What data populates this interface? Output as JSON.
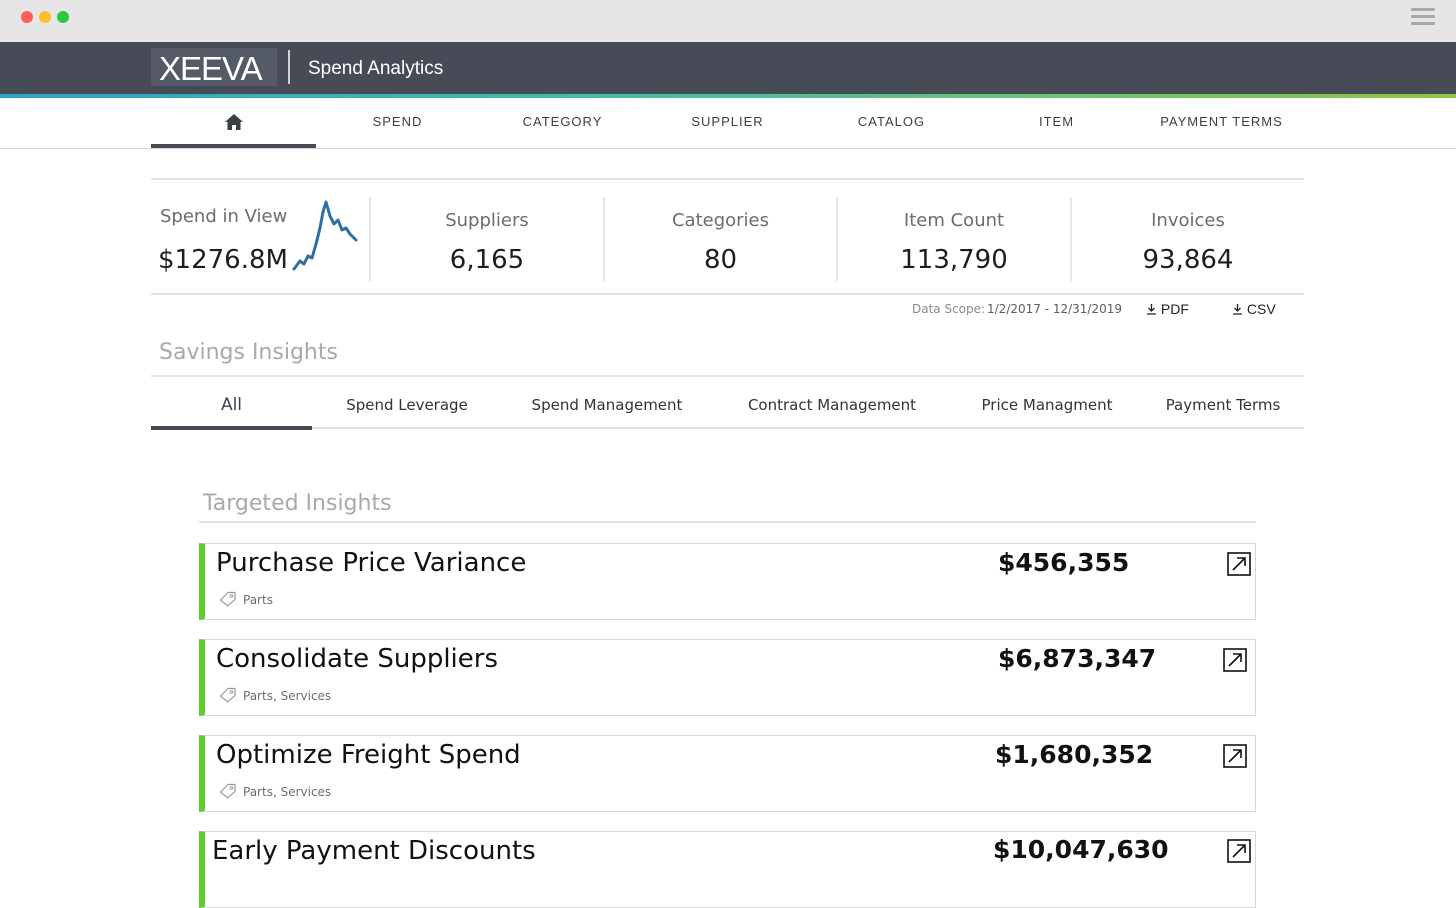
{
  "app": {
    "logo_text": "XEEVA",
    "title": "Spend Analytics"
  },
  "nav": {
    "tabs": [
      {
        "label": "",
        "icon": "home-icon"
      },
      {
        "label": "SPEND"
      },
      {
        "label": "CATEGORY"
      },
      {
        "label": "SUPPLIER"
      },
      {
        "label": "CATALOG"
      },
      {
        "label": "ITEM"
      },
      {
        "label": "PAYMENT TERMS"
      }
    ]
  },
  "kpis": {
    "spend_label": "Spend in View",
    "spend_value": "$1276.8M",
    "suppliers_label": "Suppliers",
    "suppliers_value": "6,165",
    "categories_label": "Categories",
    "categories_value": "80",
    "item_count_label": "Item Count",
    "item_count_value": "113,790",
    "invoices_label": "Invoices",
    "invoices_value": "93,864"
  },
  "scope": {
    "label": "Data Scope:",
    "value": "1/2/2017 - 12/31/2019",
    "pdf_label": "PDF",
    "csv_label": "CSV"
  },
  "savings": {
    "title": "Savings Insights",
    "tabs": [
      "All",
      "Spend Leverage",
      "Spend Management",
      "Contract Management",
      "Price Managment",
      "Payment Terms"
    ]
  },
  "targeted": {
    "title": "Targeted Insights",
    "cards": [
      {
        "title": "Purchase Price Variance",
        "tags": "Parts",
        "amount": "$456,355"
      },
      {
        "title": "Consolidate Suppliers",
        "tags": "Parts, Services",
        "amount": "$6,873,347"
      },
      {
        "title": "Optimize Freight Spend",
        "tags": "Parts, Services",
        "amount": "$1,680,352"
      },
      {
        "title": "Early Payment Discounts",
        "tags": "",
        "amount": "$10,047,630"
      }
    ]
  },
  "colors": {
    "header_bg": "#464b56",
    "accent_green": "#5fcd2c",
    "sparkline": "#2f6da3"
  }
}
